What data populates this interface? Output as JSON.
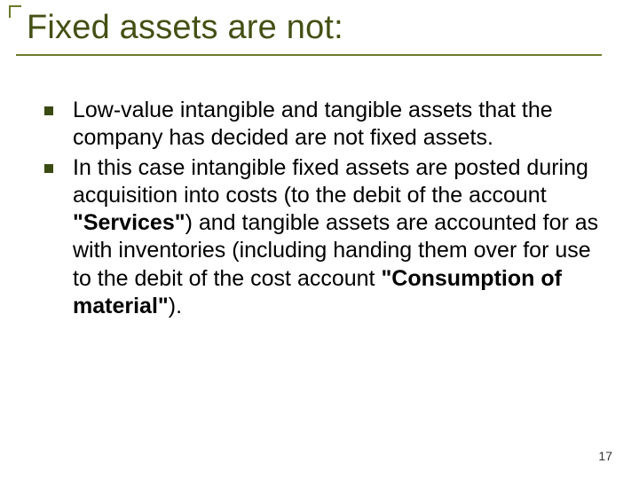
{
  "colors": {
    "accent": "#6a7a28",
    "title_text": "#445014",
    "rule": "#6a7a28",
    "bullet": "#3b4a12",
    "body_text": "#000000",
    "page_number": "#333333",
    "background": "#ffffff"
  },
  "title": "Fixed assets are not:",
  "title_fontsize": 38,
  "body_fontsize": 25,
  "bullets": [
    {
      "html": "Low-value intangible and tangible assets that the company has decided are not fixed assets."
    },
    {
      "html": "In this case intangible fixed assets are posted during acquisition into costs (to the debit of the account <b>\"Services\"</b>) and tangible assets are accounted for as with inventories (including handing them over for use to the debit of the cost account <b>\"Consumption of material\"</b>)."
    }
  ],
  "page_number": "17"
}
